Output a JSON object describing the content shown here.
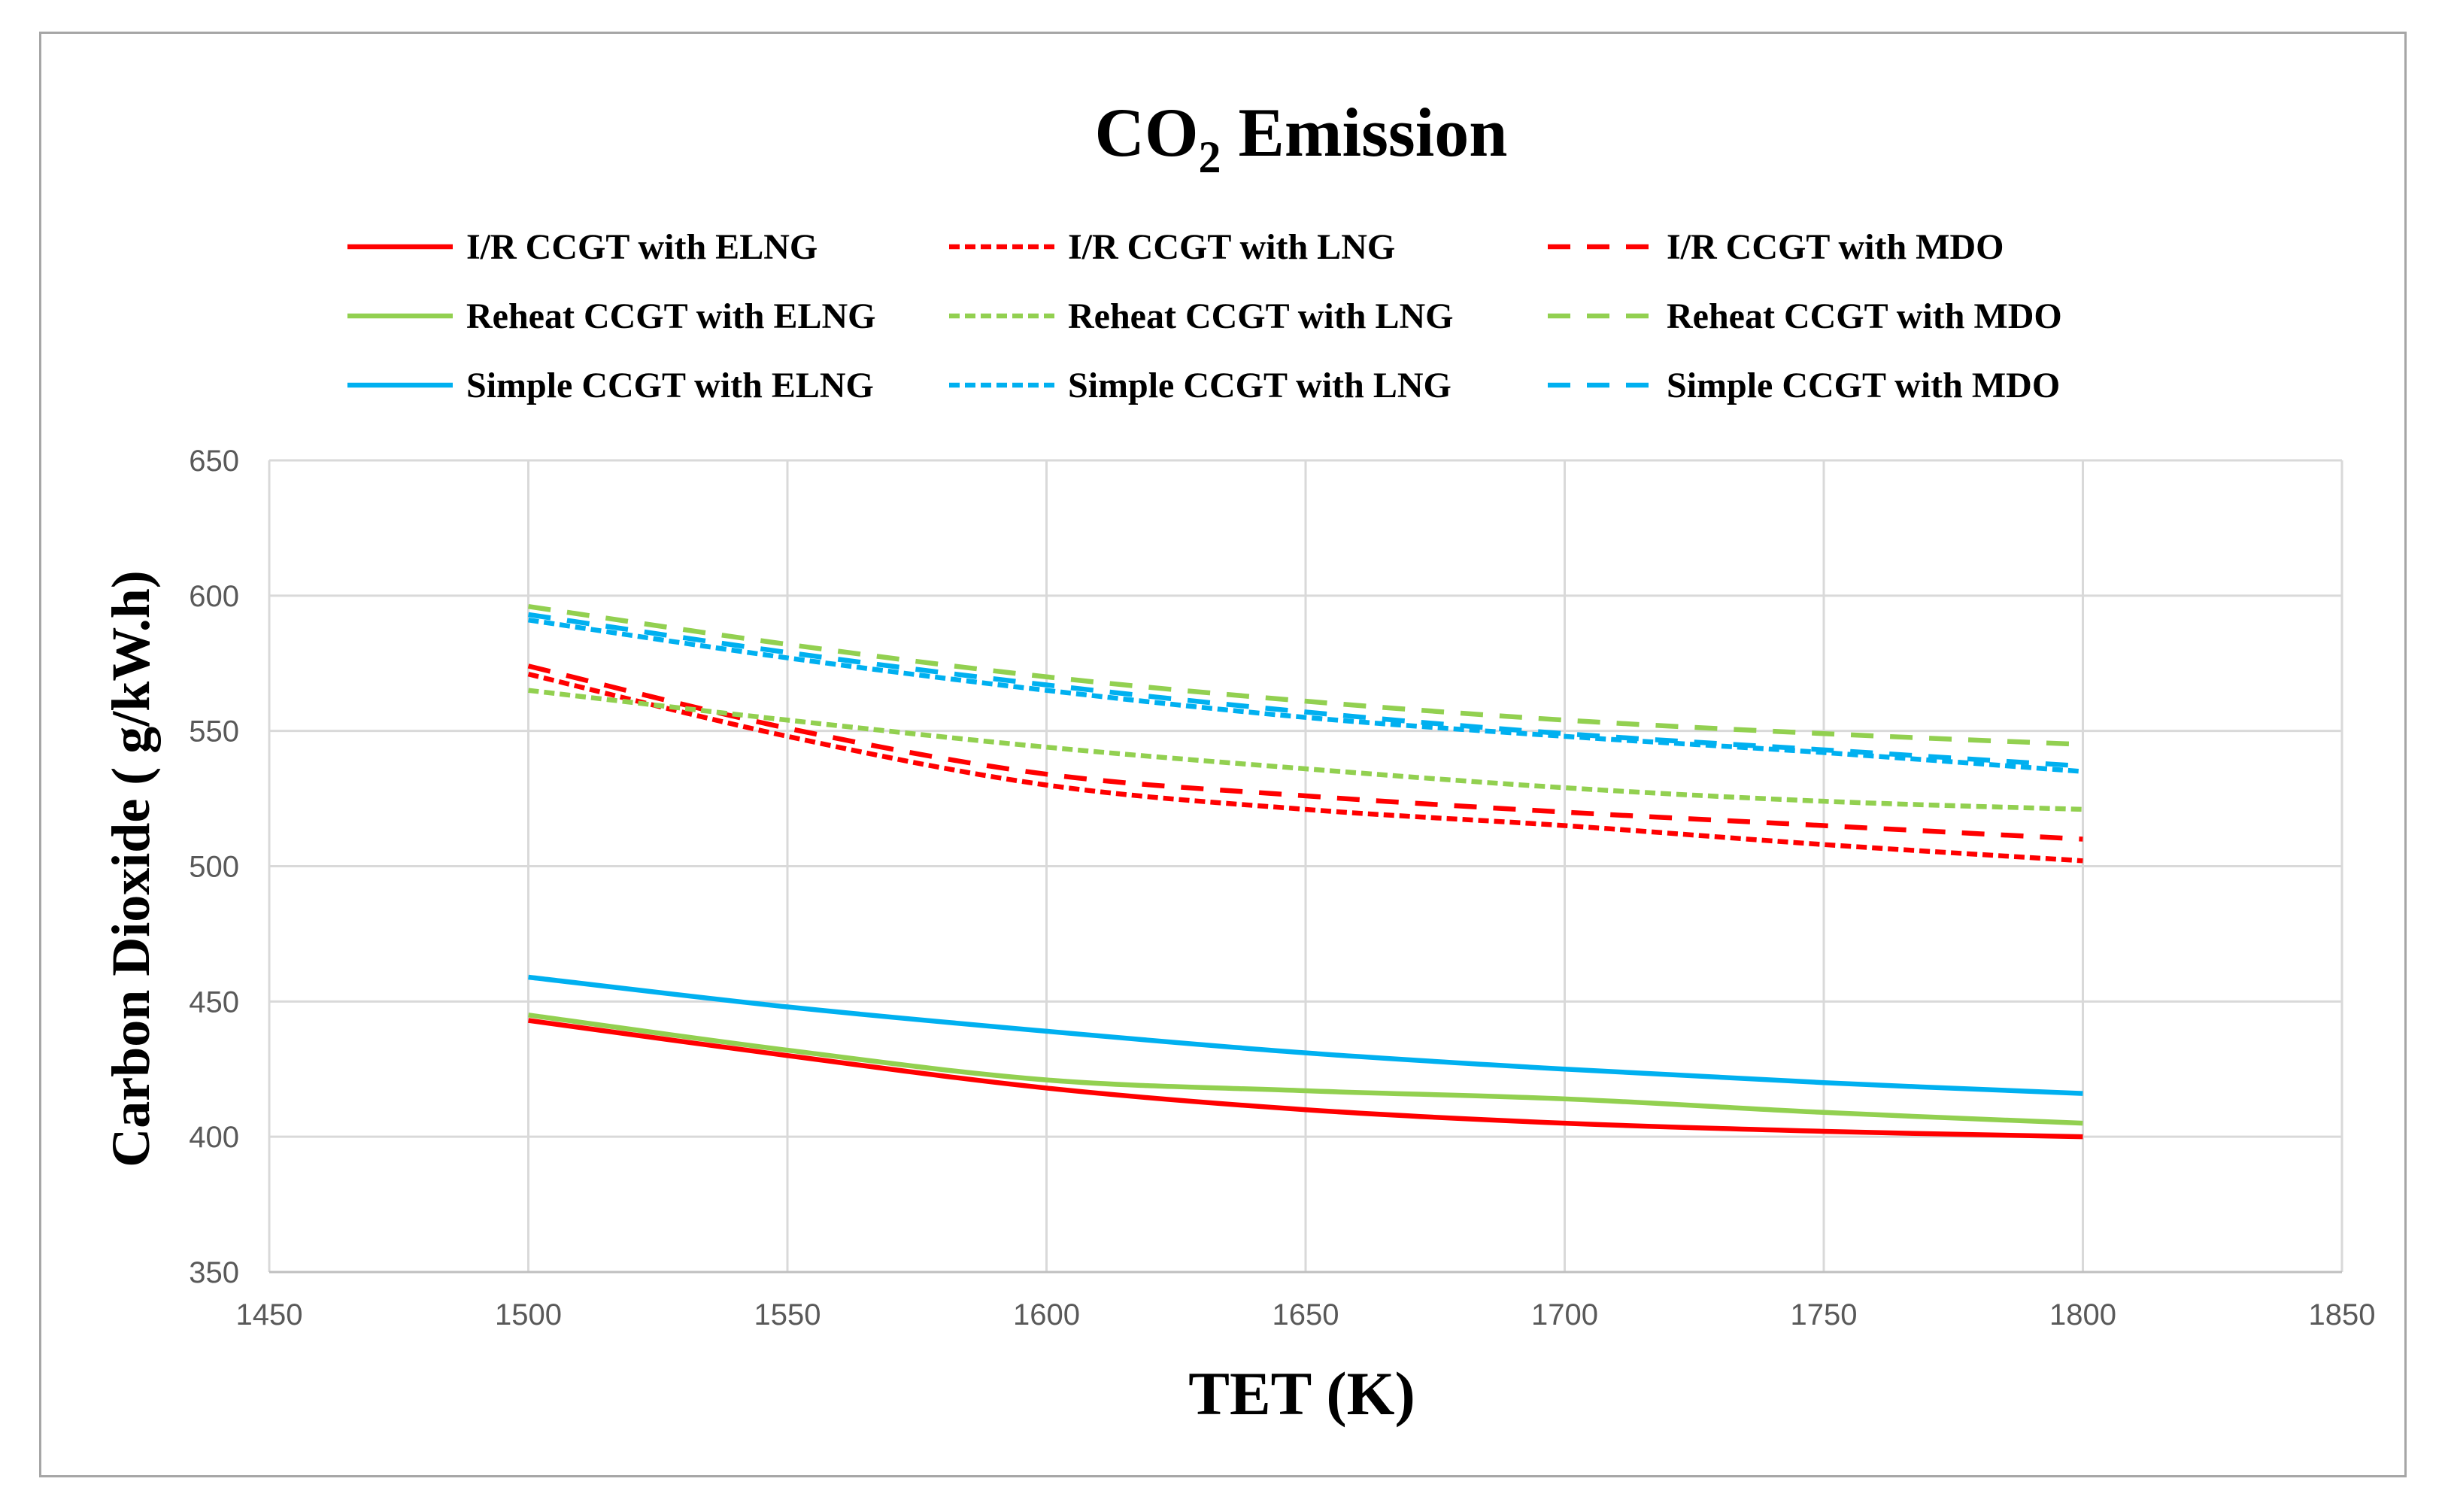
{
  "chart_data": {
    "type": "line",
    "title": {
      "main": "CO",
      "sub": "2",
      "rest": " Emission"
    },
    "xlabel": "TET (K)",
    "ylabel": "Carbon Dioxide ( g/kW.h)",
    "xlim": [
      1450,
      1850
    ],
    "ylim": [
      350,
      650
    ],
    "xticks": [
      1450,
      1500,
      1550,
      1600,
      1650,
      1700,
      1750,
      1800,
      1850
    ],
    "yticks": [
      350,
      400,
      450,
      500,
      550,
      600,
      650
    ],
    "grid": true,
    "legend_position": "top",
    "x": [
      1500,
      1550,
      1600,
      1650,
      1700,
      1750,
      1800
    ],
    "series": [
      {
        "name": "I/R CCGT with ELNG",
        "color": "#ff0000",
        "dash": "solid",
        "values": [
          443,
          430,
          418,
          410,
          405,
          402,
          400
        ]
      },
      {
        "name": "I/R CCGT with LNG",
        "color": "#ff0000",
        "dash": "dotted",
        "values": [
          571,
          548,
          530,
          521,
          515,
          508,
          502
        ]
      },
      {
        "name": "I/R CCGT with MDO",
        "color": "#ff0000",
        "dash": "dashed",
        "values": [
          574,
          551,
          534,
          526,
          520,
          515,
          510
        ]
      },
      {
        "name": "Reheat CCGT with ELNG",
        "color": "#92d050",
        "dash": "solid",
        "values": [
          445,
          432,
          421,
          417,
          414,
          409,
          405
        ]
      },
      {
        "name": "Reheat CCGT with LNG",
        "color": "#92d050",
        "dash": "dotted",
        "values": [
          565,
          554,
          544,
          536,
          529,
          524,
          521
        ]
      },
      {
        "name": "Reheat CCGT with MDO",
        "color": "#92d050",
        "dash": "dashed",
        "values": [
          596,
          582,
          570,
          561,
          554,
          549,
          545
        ]
      },
      {
        "name": "Simple CCGT with ELNG",
        "color": "#00b0f0",
        "dash": "solid",
        "values": [
          459,
          448,
          439,
          431,
          425,
          420,
          416
        ]
      },
      {
        "name": "Simple CCGT with LNG",
        "color": "#00b0f0",
        "dash": "dotted",
        "values": [
          591,
          577,
          565,
          555,
          548,
          542,
          535
        ]
      },
      {
        "name": "Simple CCGT with MDO",
        "color": "#00b0f0",
        "dash": "dashed",
        "values": [
          593,
          579,
          567,
          557,
          549,
          543,
          537
        ]
      }
    ]
  }
}
